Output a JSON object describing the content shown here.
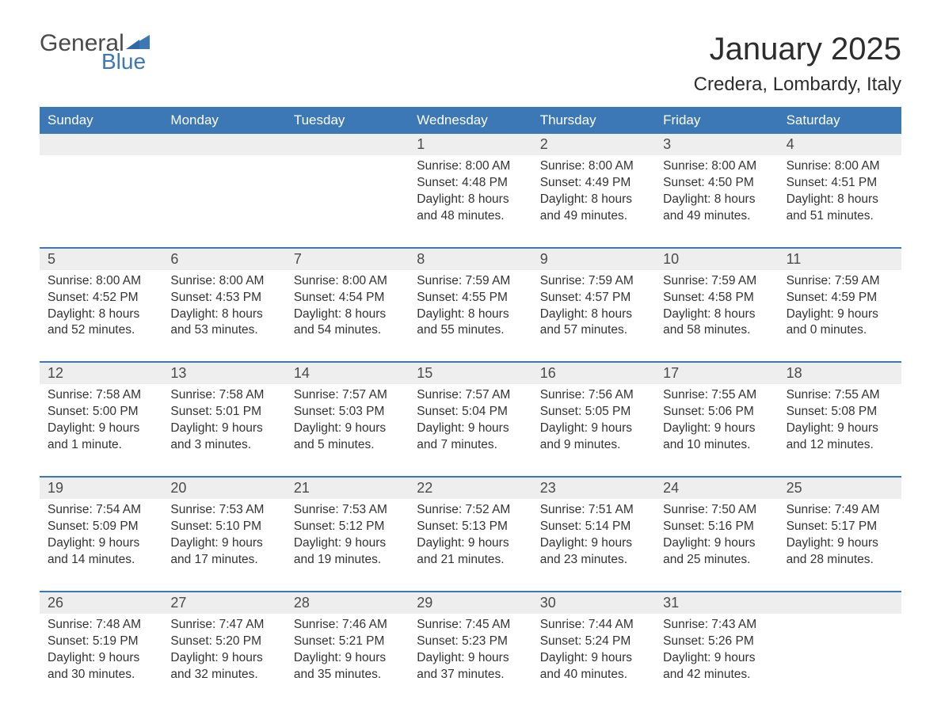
{
  "logo": {
    "text1": "General",
    "text2": "Blue"
  },
  "title": "January 2025",
  "location": "Credera, Lombardy, Italy",
  "colors": {
    "header_bg": "#3b78b5",
    "header_text": "#ffffff",
    "row_border_top": "#3b78b5",
    "daynum_bg": "#eeeeee",
    "body_text": "#333333",
    "title_text": "#2d2d2d",
    "logo_gray": "#4a4a4a",
    "logo_blue": "#3b78b5",
    "page_bg": "#ffffff"
  },
  "fonts": {
    "title_size_pt": 30,
    "location_size_pt": 18,
    "header_size_pt": 13,
    "daynum_size_pt": 13,
    "body_size_pt": 11.5
  },
  "day_names": [
    "Sunday",
    "Monday",
    "Tuesday",
    "Wednesday",
    "Thursday",
    "Friday",
    "Saturday"
  ],
  "weeks": [
    [
      {
        "n": "",
        "sr": "",
        "ss": "",
        "dl": ""
      },
      {
        "n": "",
        "sr": "",
        "ss": "",
        "dl": ""
      },
      {
        "n": "",
        "sr": "",
        "ss": "",
        "dl": ""
      },
      {
        "n": "1",
        "sr": "Sunrise: 8:00 AM",
        "ss": "Sunset: 4:48 PM",
        "dl": "Daylight: 8 hours and 48 minutes."
      },
      {
        "n": "2",
        "sr": "Sunrise: 8:00 AM",
        "ss": "Sunset: 4:49 PM",
        "dl": "Daylight: 8 hours and 49 minutes."
      },
      {
        "n": "3",
        "sr": "Sunrise: 8:00 AM",
        "ss": "Sunset: 4:50 PM",
        "dl": "Daylight: 8 hours and 49 minutes."
      },
      {
        "n": "4",
        "sr": "Sunrise: 8:00 AM",
        "ss": "Sunset: 4:51 PM",
        "dl": "Daylight: 8 hours and 51 minutes."
      }
    ],
    [
      {
        "n": "5",
        "sr": "Sunrise: 8:00 AM",
        "ss": "Sunset: 4:52 PM",
        "dl": "Daylight: 8 hours and 52 minutes."
      },
      {
        "n": "6",
        "sr": "Sunrise: 8:00 AM",
        "ss": "Sunset: 4:53 PM",
        "dl": "Daylight: 8 hours and 53 minutes."
      },
      {
        "n": "7",
        "sr": "Sunrise: 8:00 AM",
        "ss": "Sunset: 4:54 PM",
        "dl": "Daylight: 8 hours and 54 minutes."
      },
      {
        "n": "8",
        "sr": "Sunrise: 7:59 AM",
        "ss": "Sunset: 4:55 PM",
        "dl": "Daylight: 8 hours and 55 minutes."
      },
      {
        "n": "9",
        "sr": "Sunrise: 7:59 AM",
        "ss": "Sunset: 4:57 PM",
        "dl": "Daylight: 8 hours and 57 minutes."
      },
      {
        "n": "10",
        "sr": "Sunrise: 7:59 AM",
        "ss": "Sunset: 4:58 PM",
        "dl": "Daylight: 8 hours and 58 minutes."
      },
      {
        "n": "11",
        "sr": "Sunrise: 7:59 AM",
        "ss": "Sunset: 4:59 PM",
        "dl": "Daylight: 9 hours and 0 minutes."
      }
    ],
    [
      {
        "n": "12",
        "sr": "Sunrise: 7:58 AM",
        "ss": "Sunset: 5:00 PM",
        "dl": "Daylight: 9 hours and 1 minute."
      },
      {
        "n": "13",
        "sr": "Sunrise: 7:58 AM",
        "ss": "Sunset: 5:01 PM",
        "dl": "Daylight: 9 hours and 3 minutes."
      },
      {
        "n": "14",
        "sr": "Sunrise: 7:57 AM",
        "ss": "Sunset: 5:03 PM",
        "dl": "Daylight: 9 hours and 5 minutes."
      },
      {
        "n": "15",
        "sr": "Sunrise: 7:57 AM",
        "ss": "Sunset: 5:04 PM",
        "dl": "Daylight: 9 hours and 7 minutes."
      },
      {
        "n": "16",
        "sr": "Sunrise: 7:56 AM",
        "ss": "Sunset: 5:05 PM",
        "dl": "Daylight: 9 hours and 9 minutes."
      },
      {
        "n": "17",
        "sr": "Sunrise: 7:55 AM",
        "ss": "Sunset: 5:06 PM",
        "dl": "Daylight: 9 hours and 10 minutes."
      },
      {
        "n": "18",
        "sr": "Sunrise: 7:55 AM",
        "ss": "Sunset: 5:08 PM",
        "dl": "Daylight: 9 hours and 12 minutes."
      }
    ],
    [
      {
        "n": "19",
        "sr": "Sunrise: 7:54 AM",
        "ss": "Sunset: 5:09 PM",
        "dl": "Daylight: 9 hours and 14 minutes."
      },
      {
        "n": "20",
        "sr": "Sunrise: 7:53 AM",
        "ss": "Sunset: 5:10 PM",
        "dl": "Daylight: 9 hours and 17 minutes."
      },
      {
        "n": "21",
        "sr": "Sunrise: 7:53 AM",
        "ss": "Sunset: 5:12 PM",
        "dl": "Daylight: 9 hours and 19 minutes."
      },
      {
        "n": "22",
        "sr": "Sunrise: 7:52 AM",
        "ss": "Sunset: 5:13 PM",
        "dl": "Daylight: 9 hours and 21 minutes."
      },
      {
        "n": "23",
        "sr": "Sunrise: 7:51 AM",
        "ss": "Sunset: 5:14 PM",
        "dl": "Daylight: 9 hours and 23 minutes."
      },
      {
        "n": "24",
        "sr": "Sunrise: 7:50 AM",
        "ss": "Sunset: 5:16 PM",
        "dl": "Daylight: 9 hours and 25 minutes."
      },
      {
        "n": "25",
        "sr": "Sunrise: 7:49 AM",
        "ss": "Sunset: 5:17 PM",
        "dl": "Daylight: 9 hours and 28 minutes."
      }
    ],
    [
      {
        "n": "26",
        "sr": "Sunrise: 7:48 AM",
        "ss": "Sunset: 5:19 PM",
        "dl": "Daylight: 9 hours and 30 minutes."
      },
      {
        "n": "27",
        "sr": "Sunrise: 7:47 AM",
        "ss": "Sunset: 5:20 PM",
        "dl": "Daylight: 9 hours and 32 minutes."
      },
      {
        "n": "28",
        "sr": "Sunrise: 7:46 AM",
        "ss": "Sunset: 5:21 PM",
        "dl": "Daylight: 9 hours and 35 minutes."
      },
      {
        "n": "29",
        "sr": "Sunrise: 7:45 AM",
        "ss": "Sunset: 5:23 PM",
        "dl": "Daylight: 9 hours and 37 minutes."
      },
      {
        "n": "30",
        "sr": "Sunrise: 7:44 AM",
        "ss": "Sunset: 5:24 PM",
        "dl": "Daylight: 9 hours and 40 minutes."
      },
      {
        "n": "31",
        "sr": "Sunrise: 7:43 AM",
        "ss": "Sunset: 5:26 PM",
        "dl": "Daylight: 9 hours and 42 minutes."
      },
      {
        "n": "",
        "sr": "",
        "ss": "",
        "dl": ""
      }
    ]
  ]
}
